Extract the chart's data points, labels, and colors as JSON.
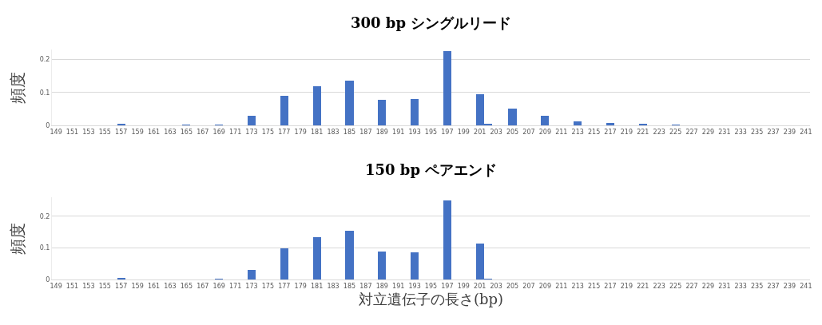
{
  "chart_data": [
    {
      "type": "bar",
      "title": "300 bp シングルリード",
      "ylabel": "頻度",
      "categories": [
        "149",
        null,
        "151",
        null,
        "153",
        null,
        "155",
        null,
        "157",
        null,
        "159",
        null,
        "161",
        null,
        "163",
        null,
        "165",
        null,
        "167",
        null,
        "169",
        null,
        "171",
        null,
        "173",
        null,
        "175",
        null,
        "177",
        null,
        "179",
        null,
        "181",
        null,
        "183",
        null,
        "185",
        null,
        "187",
        null,
        "189",
        null,
        "191",
        null,
        "193",
        null,
        "195",
        null,
        "197",
        null,
        "199",
        null,
        "201",
        null,
        "203",
        null,
        "205",
        null,
        "207",
        null,
        "209",
        null,
        "211",
        null,
        "213",
        null,
        "215",
        null,
        "217",
        null,
        "219",
        null,
        "221",
        null,
        "223",
        null,
        "225",
        null,
        "227",
        null,
        "229",
        null,
        "231",
        null,
        "233",
        null,
        "235",
        null,
        "237",
        null,
        "239",
        null,
        "241"
      ],
      "values": [
        0,
        0,
        0,
        0,
        0,
        0,
        0,
        0,
        0.006,
        0,
        0,
        0,
        0,
        0,
        0,
        0,
        0.002,
        0,
        0,
        0,
        0.002,
        0,
        0,
        0,
        0.03,
        0,
        0,
        0,
        0.09,
        0,
        0,
        0,
        0.119,
        0,
        0,
        0,
        0.136,
        0,
        0,
        0,
        0.078,
        0,
        0,
        0,
        0.081,
        0,
        0,
        0,
        0.225,
        0,
        0,
        0,
        0.095,
        0.004,
        0,
        0,
        0.052,
        0,
        0,
        0,
        0.029,
        0,
        0,
        0,
        0.012,
        0,
        0,
        0,
        0.007,
        0,
        0,
        0,
        0.006,
        0,
        0,
        0,
        0.002,
        0,
        0,
        0,
        0,
        0,
        0,
        0,
        0,
        0,
        0,
        0,
        0,
        0,
        0,
        0,
        0
      ],
      "color": "#4472c4",
      "ylim": [
        0,
        0.23
      ],
      "yticks": [
        0,
        0.1,
        0.2
      ],
      "grid": "y"
    },
    {
      "type": "bar",
      "title": "150 bp ペアエンド",
      "ylabel": "頻度",
      "xlabel": "対立遺伝子の長さ(bp)",
      "categories": [
        "149",
        null,
        "151",
        null,
        "153",
        null,
        "155",
        null,
        "157",
        null,
        "159",
        null,
        "161",
        null,
        "163",
        null,
        "165",
        null,
        "167",
        null,
        "169",
        null,
        "171",
        null,
        "173",
        null,
        "175",
        null,
        "177",
        null,
        "179",
        null,
        "181",
        null,
        "183",
        null,
        "185",
        null,
        "187",
        null,
        "189",
        null,
        "191",
        null,
        "193",
        null,
        "195",
        null,
        "197",
        null,
        "199",
        null,
        "201",
        null,
        "203",
        null,
        "205",
        null,
        "207",
        null,
        "209",
        null,
        "211",
        null,
        "213",
        null,
        "215",
        null,
        "217",
        null,
        "219",
        null,
        "221",
        null,
        "223",
        null,
        "225",
        null,
        "227",
        null,
        "229",
        null,
        "231",
        null,
        "233",
        null,
        "235",
        null,
        "237",
        null,
        "239",
        null,
        "241"
      ],
      "values": [
        0,
        0,
        0,
        0,
        0,
        0,
        0,
        0,
        0.005,
        0,
        0,
        0,
        0,
        0,
        0,
        0,
        0,
        0,
        0,
        0,
        0.002,
        0,
        0,
        0,
        0.031,
        0,
        0,
        0,
        0.098,
        0,
        0,
        0,
        0.133,
        0,
        0,
        0,
        0.154,
        0,
        0,
        0,
        0.088,
        0,
        0,
        0,
        0.086,
        0,
        0,
        0,
        0.251,
        0,
        0,
        0,
        0.114,
        0.002,
        0,
        0,
        0,
        0,
        0,
        0,
        0,
        0,
        0,
        0,
        0,
        0,
        0,
        0,
        0,
        0,
        0,
        0,
        0,
        0,
        0,
        0,
        0,
        0,
        0,
        0,
        0,
        0,
        0,
        0,
        0,
        0,
        0,
        0,
        0,
        0,
        0,
        0,
        0
      ],
      "color": "#4472c4",
      "ylim": [
        0,
        0.26
      ],
      "yticks": [
        0,
        0.1,
        0.2
      ],
      "grid": "y"
    }
  ]
}
